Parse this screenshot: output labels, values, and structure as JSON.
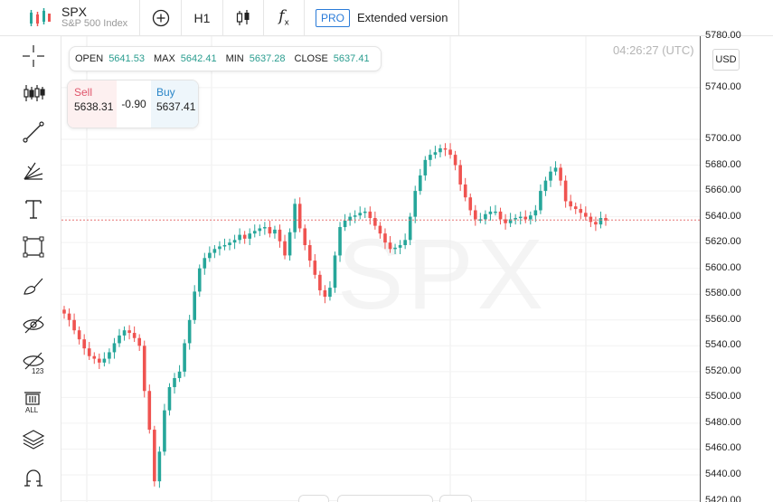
{
  "header": {
    "symbol": "SPX",
    "name": "S&P 500 Index",
    "add_icon": "plus-circle-icon",
    "timeframe": "H1",
    "chart_type_icon": "candlestick-icon",
    "indicators_icon": "function-icon",
    "pro_badge": "PRO",
    "extended_label": "Extended version"
  },
  "tools": [
    "crosshair-icon",
    "indicators-icon",
    "trend-line-icon",
    "fib-tool-icon",
    "text-icon",
    "rectangle-icon",
    "brush-icon",
    "hide-drawings-icon",
    "hide-labels-icon",
    "delete-all-icon",
    "layers-icon",
    "magnet-icon"
  ],
  "delete_all_label": "ALL",
  "hide_labels_badge": "123",
  "ohlc": {
    "open_label": "OPEN",
    "open": "5641.53",
    "max_label": "MAX",
    "max": "5642.41",
    "min_label": "MIN",
    "min": "5637.28",
    "close_label": "CLOSE",
    "close": "5637.41"
  },
  "trade": {
    "sell_label": "Sell",
    "sell_price": "5638.31",
    "spread": "-0.90",
    "buy_label": "Buy",
    "buy_price": "5637.41"
  },
  "time": "04:26:27 (UTC)",
  "currency": "USD",
  "watermark": "SPX",
  "colors": {
    "up": "#26a69a",
    "down": "#ef5350",
    "price_line": "#e57373",
    "accent": "#2a7bd8"
  },
  "chart_data": {
    "type": "candlestick",
    "y_ticks": [
      "5780.00",
      "5740.00",
      "5700.00",
      "5680.00",
      "5660.00",
      "5640.00",
      "5620.00",
      "5600.00",
      "5580.00",
      "5560.00",
      "5540.00",
      "5520.00",
      "5500.00",
      "5480.00",
      "5460.00",
      "5440.00",
      "5420.00"
    ],
    "current_price": 5637.41,
    "closes": [
      5565,
      5560,
      5552,
      5545,
      5538,
      5532,
      5530,
      5527,
      5530,
      5535,
      5542,
      5548,
      5552,
      5550,
      5546,
      5540,
      5505,
      5475,
      5435,
      5458,
      5490,
      5508,
      5515,
      5520,
      5542,
      5560,
      5582,
      5600,
      5608,
      5612,
      5615,
      5617,
      5618,
      5620,
      5622,
      5626,
      5623,
      5627,
      5629,
      5631,
      5632,
      5627,
      5630,
      5621,
      5610,
      5628,
      5650,
      5631,
      5618,
      5606,
      5595,
      5583,
      5578,
      5585,
      5610,
      5632,
      5637,
      5640,
      5641,
      5643,
      5644,
      5639,
      5633,
      5627,
      5620,
      5615,
      5616,
      5618,
      5622,
      5640,
      5660,
      5672,
      5684,
      5688,
      5690,
      5693,
      5692,
      5688,
      5680,
      5665,
      5655,
      5645,
      5638,
      5638,
      5642,
      5644,
      5644,
      5638,
      5635,
      5638,
      5639,
      5640,
      5638,
      5641,
      5645,
      5660,
      5668,
      5675,
      5678,
      5668,
      5652,
      5648,
      5646,
      5643,
      5640,
      5636,
      5634,
      5639,
      5637
    ]
  }
}
